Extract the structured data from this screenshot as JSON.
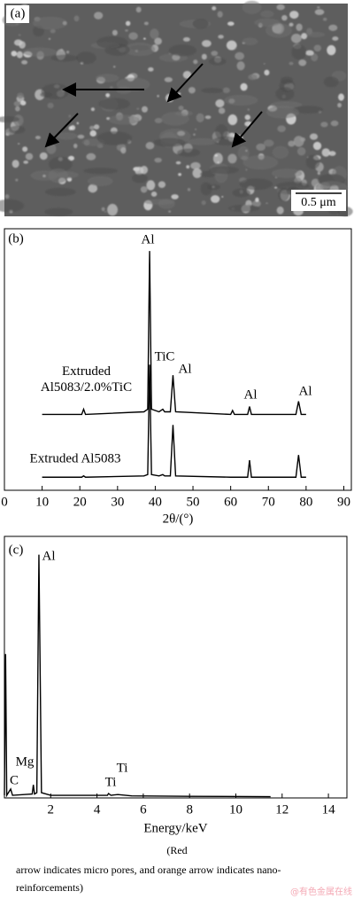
{
  "panel_a": {
    "label": "(a)",
    "scale_bar": "0.5 μm"
  },
  "chart_data": [
    {
      "type": "line",
      "label": "(b)",
      "xlabel": "2θ/(°)",
      "x": [
        10,
        20.5,
        21,
        21.5,
        37,
        38,
        38.5,
        39,
        41,
        42,
        42.5,
        44,
        44.7,
        45.4,
        60,
        60.5,
        61,
        64.5,
        65,
        65.5,
        77.3,
        78,
        78.7,
        80
      ],
      "series": [
        {
          "name": "Extruded Al5083/2.0%TiC",
          "color": "#000000",
          "values": [
            29,
            29,
            31,
            29,
            30,
            31,
            91.5,
            31,
            30,
            31,
            30,
            30,
            44,
            30,
            29,
            30.5,
            29,
            29,
            32,
            29,
            29,
            34,
            29,
            29
          ]
        },
        {
          "name": "Extruded Al5083",
          "color": "#000000",
          "values": [
            5,
            5,
            5.5,
            5,
            5.5,
            6,
            48,
            6,
            5.5,
            6,
            5.5,
            5.5,
            25,
            5.5,
            5,
            5,
            5,
            5,
            11.5,
            5,
            5,
            13.5,
            5,
            5
          ]
        }
      ],
      "xlim": [
        0,
        92
      ],
      "xticks": [
        0,
        10,
        20,
        30,
        40,
        50,
        60,
        70,
        80,
        90
      ],
      "ylim": [
        0,
        100
      ],
      "annotations": [
        "Al",
        "TiC",
        "Al",
        "Al",
        "Al"
      ]
    },
    {
      "type": "line",
      "label": "(c)",
      "xlabel": "Energy/keV",
      "x": [
        0,
        0.05,
        0.1,
        0.27,
        0.35,
        1.2,
        1.25,
        1.3,
        1.4,
        1.49,
        1.6,
        2,
        3,
        4.45,
        4.5,
        4.6,
        4.9,
        5.5,
        8,
        11.5
      ],
      "series": [
        {
          "color": "#000000",
          "values": [
            1,
            55,
            1,
            3.4,
            1,
            1.5,
            5,
            1.5,
            2,
            93,
            2,
            1,
            1,
            1,
            1.7,
            1,
            1.3,
            0.8,
            0.6,
            0.5
          ]
        }
      ],
      "xlim": [
        0,
        14.8
      ],
      "xticks": [
        2,
        4,
        6,
        8,
        10,
        12,
        14
      ],
      "ylim": [
        0,
        100
      ],
      "annotations": [
        "Al",
        "Mg",
        "C",
        "Ti",
        "Ti"
      ]
    }
  ],
  "caption": {
    "lines": [
      "(Red",
      "arrow indicates micro pores, and orange arrow indicates nano-",
      "reinforcements)"
    ],
    "watermark": "@有色金属在线"
  }
}
